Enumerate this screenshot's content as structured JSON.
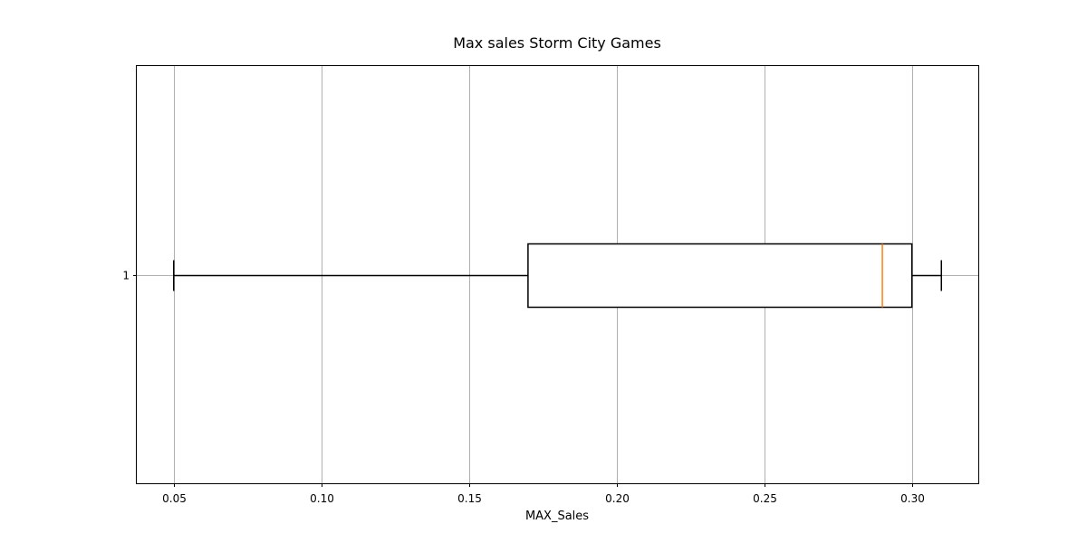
{
  "chart_data": {
    "type": "box",
    "orientation": "horizontal",
    "title": "Max sales Storm City Games",
    "xlabel": "MAX_Sales",
    "ylabel": "",
    "xlim": [
      0.0375,
      0.3225
    ],
    "x_ticks": [
      0.05,
      0.1,
      0.15,
      0.2,
      0.25,
      0.3
    ],
    "x_tick_labels": [
      "0.05",
      "0.10",
      "0.15",
      "0.20",
      "0.25",
      "0.30"
    ],
    "y_tick_labels": [
      "1"
    ],
    "grid": true,
    "boxes": [
      {
        "label": "1",
        "whisker_low": 0.05,
        "q1": 0.17,
        "median": 0.29,
        "q3": 0.3,
        "whisker_high": 0.31
      }
    ],
    "colors": {
      "box": "#000000",
      "median": "#ff7f0e",
      "grid": "#b0b0b0"
    }
  }
}
